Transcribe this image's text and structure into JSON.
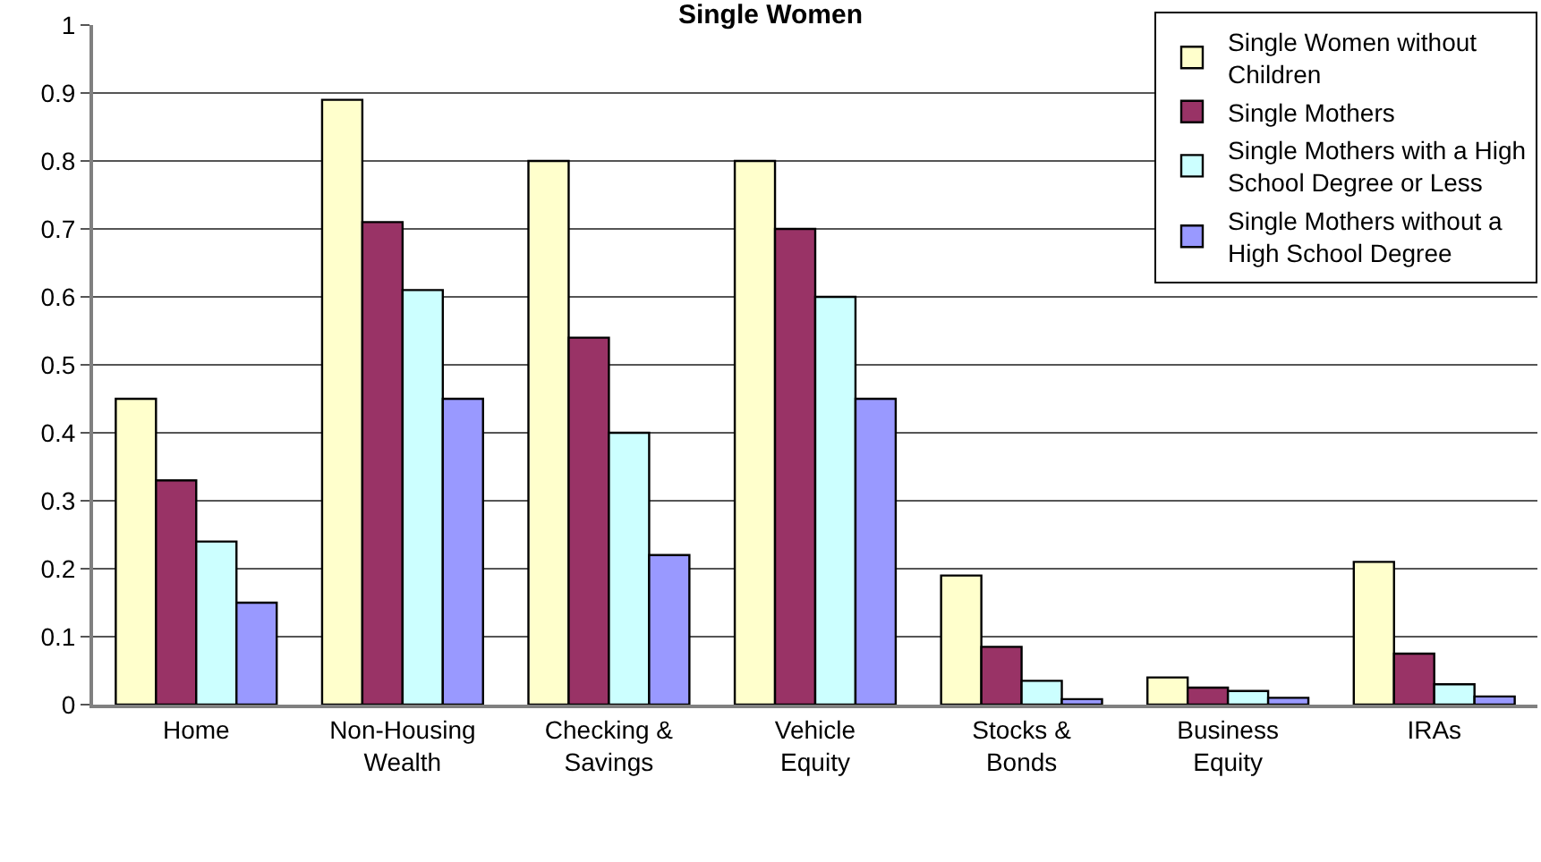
{
  "chart_data": {
    "type": "bar",
    "title": "Single Women",
    "categories": [
      "Home",
      "Non-Housing Wealth",
      "Checking & Savings",
      "Vehicle Equity",
      "Stocks & Bonds",
      "Business Equity",
      "IRAs"
    ],
    "series": [
      {
        "name": "Single Women without Children",
        "color": "#ffffcc",
        "values": [
          0.45,
          0.89,
          0.8,
          0.8,
          0.19,
          0.04,
          0.21
        ]
      },
      {
        "name": "Single Mothers",
        "color": "#993366",
        "values": [
          0.33,
          0.71,
          0.54,
          0.7,
          0.085,
          0.025,
          0.075
        ]
      },
      {
        "name": "Single Mothers with a High School Degree or Less",
        "color": "#ccffff",
        "values": [
          0.24,
          0.61,
          0.4,
          0.6,
          0.035,
          0.02,
          0.03
        ]
      },
      {
        "name": "Single Mothers without a High School Degree",
        "color": "#9999ff",
        "values": [
          0.15,
          0.45,
          0.22,
          0.45,
          0.008,
          0.01,
          0.012
        ]
      }
    ],
    "ylim": [
      0,
      1
    ],
    "yticks": [
      0,
      0.1,
      0.2,
      0.3,
      0.4,
      0.5,
      0.6,
      0.7,
      0.8,
      0.9,
      1
    ],
    "grid": "y",
    "legend": "top right"
  }
}
